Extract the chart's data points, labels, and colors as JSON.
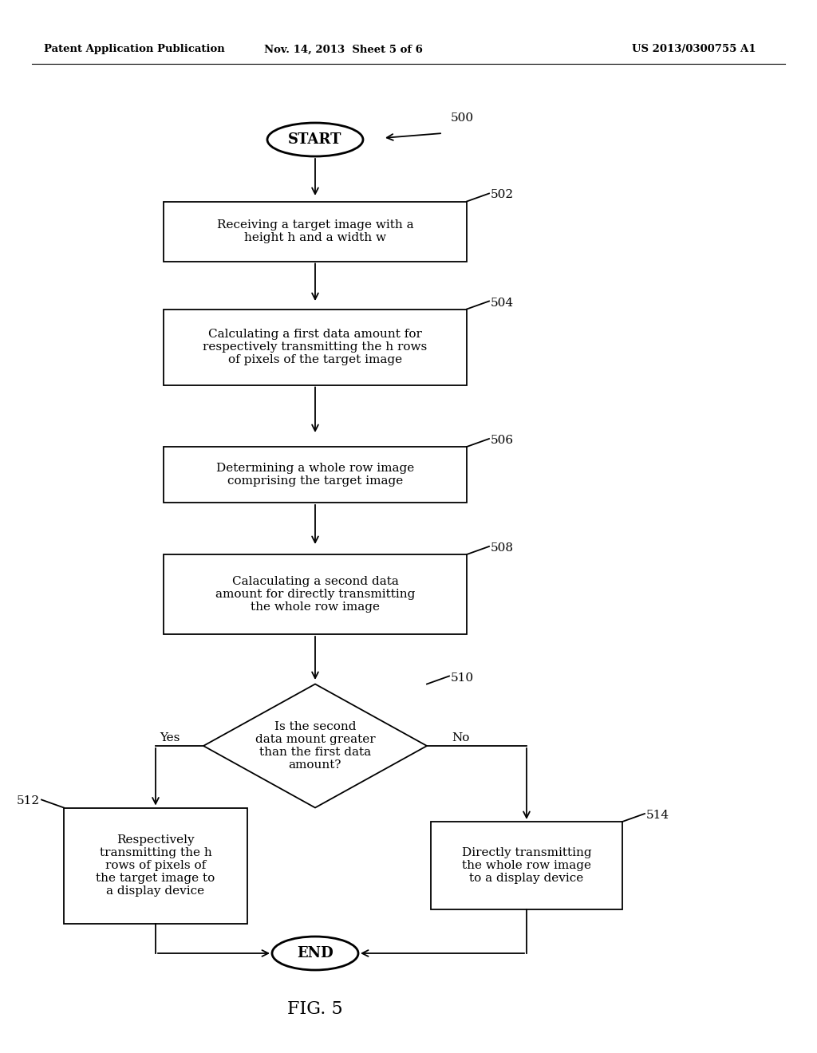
{
  "bg_color": "#ffffff",
  "header_left": "Patent Application Publication",
  "header_mid": "Nov. 14, 2013  Sheet 5 of 6",
  "header_right": "US 2013/0300755 A1",
  "fig_label": "FIG. 5",
  "start_label": "START",
  "end_label": "END",
  "box502_text": "Receiving a target image with a\nheight h and a width w",
  "box504_text": "Calculating a first data amount for\nrespectively transmitting the h rows\nof pixels of the target image",
  "box506_text": "Determining a whole row image\ncomprising the target image",
  "box508_text": "Calaculating a second data\namount for directly transmitting\nthe whole row image",
  "diamond510_text": "Is the second\ndata mount greater\nthan the first data\namount?",
  "box512_text": "Respectively\ntransmitting the h\nrows of pixels of\nthe target image to\na display device",
  "box514_text": "Directly transmitting\nthe whole row image\nto a display device",
  "label500": "500",
  "label502": "502",
  "label504": "504",
  "label506": "506",
  "label508": "508",
  "label510": "510",
  "label512": "512",
  "label514": "514",
  "yes_label": "Yes",
  "no_label": "No"
}
